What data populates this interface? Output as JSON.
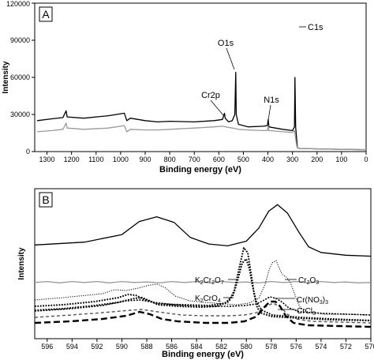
{
  "chart_data": [
    {
      "panel_label": "A",
      "type": "line",
      "xlabel": "Binding energy (eV)",
      "ylabel": "Intensity",
      "xlim": [
        1350,
        0
      ],
      "ylim": [
        0,
        120000
      ],
      "x_ticks": [
        1300,
        1200,
        1100,
        1000,
        900,
        800,
        700,
        600,
        500,
        400,
        300,
        200,
        100,
        0
      ],
      "y_ticks": [
        0,
        30000,
        60000,
        90000,
        120000
      ],
      "y_tick_labels": [
        "0",
        "30000",
        "60000",
        "90000",
        "120000"
      ],
      "grid": false,
      "series": [
        {
          "color": "#000000",
          "points": [
            [
              1340,
              25000
            ],
            [
              1280,
              26500
            ],
            [
              1235,
              27500
            ],
            [
              1222,
              33000
            ],
            [
              1218,
              28000
            ],
            [
              1150,
              27000
            ],
            [
              1050,
              29000
            ],
            [
              985,
              31000
            ],
            [
              975,
              25000
            ],
            [
              960,
              27000
            ],
            [
              900,
              25000
            ],
            [
              850,
              24000
            ],
            [
              800,
              24500
            ],
            [
              700,
              24000
            ],
            [
              620,
              25000
            ],
            [
              585,
              26000
            ],
            [
              577,
              31000
            ],
            [
              574,
              27000
            ],
            [
              560,
              24000
            ],
            [
              545,
              25000
            ],
            [
              535,
              30000
            ],
            [
              531,
              64000
            ],
            [
              529,
              30000
            ],
            [
              520,
              22000
            ],
            [
              480,
              20000
            ],
            [
              420,
              20500
            ],
            [
              402,
              21000
            ],
            [
              399,
              26000
            ],
            [
              396,
              20000
            ],
            [
              340,
              18000
            ],
            [
              300,
              17000
            ],
            [
              292,
              20000
            ],
            [
              290,
              60000
            ],
            [
              287,
              20000
            ],
            [
              283,
              10000
            ],
            [
              280,
              3000
            ],
            [
              270,
              2500
            ],
            [
              150,
              2000
            ],
            [
              0,
              1500
            ]
          ]
        },
        {
          "color": "#999999",
          "points": [
            [
              1340,
              16000
            ],
            [
              1280,
              17000
            ],
            [
              1235,
              18000
            ],
            [
              1222,
              23000
            ],
            [
              1218,
              19000
            ],
            [
              1150,
              18000
            ],
            [
              1050,
              19000
            ],
            [
              985,
              21000
            ],
            [
              975,
              16000
            ],
            [
              960,
              18000
            ],
            [
              900,
              17500
            ],
            [
              850,
              17500
            ],
            [
              800,
              18000
            ],
            [
              700,
              19000
            ],
            [
              620,
              20000
            ],
            [
              585,
              20500
            ],
            [
              560,
              19500
            ],
            [
              545,
              19000
            ],
            [
              531,
              18500
            ],
            [
              520,
              18000
            ],
            [
              480,
              17500
            ],
            [
              420,
              17000
            ],
            [
              402,
              17000
            ],
            [
              399,
              21000
            ],
            [
              396,
              17000
            ],
            [
              340,
              16000
            ],
            [
              300,
              15500
            ],
            [
              292,
              17000
            ],
            [
              289,
              13000
            ],
            [
              285,
              8000
            ],
            [
              282,
              4000
            ],
            [
              280,
              3000
            ],
            [
              270,
              2500
            ],
            [
              150,
              2000
            ],
            [
              0,
              1500
            ]
          ]
        }
      ],
      "annotations": [
        {
          "text": "Cr2p",
          "x": 578
        },
        {
          "text": "O1s",
          "x": 531
        },
        {
          "text": "N1s",
          "x": 399
        },
        {
          "text": "C1s",
          "x": 290
        }
      ]
    },
    {
      "panel_label": "B",
      "type": "line",
      "xlabel": "Binding energy (eV)",
      "ylabel": "Intensity",
      "xlim": [
        597,
        570
      ],
      "x_ticks": [
        596,
        594,
        592,
        590,
        588,
        586,
        584,
        582,
        580,
        578,
        576,
        574,
        572,
        570
      ],
      "grid": false,
      "series": [
        {
          "color": "#000000",
          "style": "solid",
          "points": [
            [
              597,
              100
            ],
            [
              593,
              103
            ],
            [
              590,
              111
            ],
            [
              588.6,
              125
            ],
            [
              587.2,
              130
            ],
            [
              585.8,
              124
            ],
            [
              584.5,
              108
            ],
            [
              583,
              101
            ],
            [
              581.5,
              99
            ],
            [
              580,
              104
            ],
            [
              579,
              118
            ],
            [
              578.2,
              136
            ],
            [
              577.5,
              143
            ],
            [
              576.7,
              134
            ],
            [
              575.8,
              114
            ],
            [
              575,
              98
            ],
            [
              574,
              92
            ],
            [
              572,
              89
            ],
            [
              570,
              88
            ]
          ]
        },
        {
          "color": "#999999",
          "style": "solid",
          "points": [
            [
              597,
              60
            ],
            [
              596,
              61
            ],
            [
              595,
              59.5
            ],
            [
              594,
              61
            ],
            [
              593,
              60
            ],
            [
              592,
              61
            ],
            [
              591,
              59.5
            ],
            [
              590,
              61
            ],
            [
              589,
              60
            ],
            [
              588,
              60.5
            ],
            [
              587,
              59.5
            ],
            [
              586,
              61
            ],
            [
              585,
              60
            ],
            [
              584,
              61
            ],
            [
              583,
              59.5
            ],
            [
              582,
              61
            ],
            [
              581,
              60
            ],
            [
              580,
              60.5
            ],
            [
              579,
              59.5
            ],
            [
              578,
              61
            ],
            [
              577,
              60
            ],
            [
              576,
              61
            ],
            [
              575,
              59.5
            ],
            [
              574,
              61
            ],
            [
              573,
              60
            ],
            [
              572,
              60.5
            ],
            [
              571,
              59.5
            ],
            [
              570,
              60
            ]
          ]
        }
      ],
      "annotations": [
        {
          "text": "K2Cr2O7",
          "x": 580.0
        },
        {
          "text": "K2CrO4",
          "x": 580.0
        },
        {
          "text": "Cr2O3",
          "x": 576.5
        },
        {
          "text": "Cr(NO3)3",
          "x": 577.2
        },
        {
          "text": "CrCl3",
          "x": 577.0
        }
      ]
    }
  ]
}
